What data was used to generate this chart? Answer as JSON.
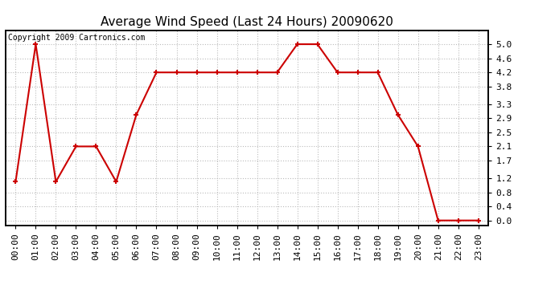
{
  "title": "Average Wind Speed (Last 24 Hours) 20090620",
  "copyright_text": "Copyright 2009 Cartronics.com",
  "hours": [
    "00:00",
    "01:00",
    "02:00",
    "03:00",
    "04:00",
    "05:00",
    "06:00",
    "07:00",
    "08:00",
    "09:00",
    "10:00",
    "11:00",
    "12:00",
    "13:00",
    "14:00",
    "15:00",
    "16:00",
    "17:00",
    "18:00",
    "19:00",
    "20:00",
    "21:00",
    "22:00",
    "23:00"
  ],
  "values": [
    1.1,
    5.0,
    1.1,
    2.1,
    2.1,
    1.1,
    3.0,
    4.2,
    4.2,
    4.2,
    4.2,
    4.2,
    4.2,
    4.2,
    5.0,
    5.0,
    4.2,
    4.2,
    4.2,
    3.0,
    2.1,
    0.0,
    0.0,
    0.0
  ],
  "line_color": "#cc0000",
  "marker": "+",
  "marker_size": 5,
  "bg_color": "#ffffff",
  "plot_bg_color": "#ffffff",
  "grid_color": "#bbbbbb",
  "yticks": [
    0.0,
    0.4,
    0.8,
    1.2,
    1.7,
    2.1,
    2.5,
    2.9,
    3.3,
    3.8,
    4.2,
    4.6,
    5.0
  ],
  "ylim": [
    -0.15,
    5.4
  ],
  "title_fontsize": 11,
  "copyright_fontsize": 7,
  "tick_fontsize": 8,
  "ytick_fontsize": 8
}
